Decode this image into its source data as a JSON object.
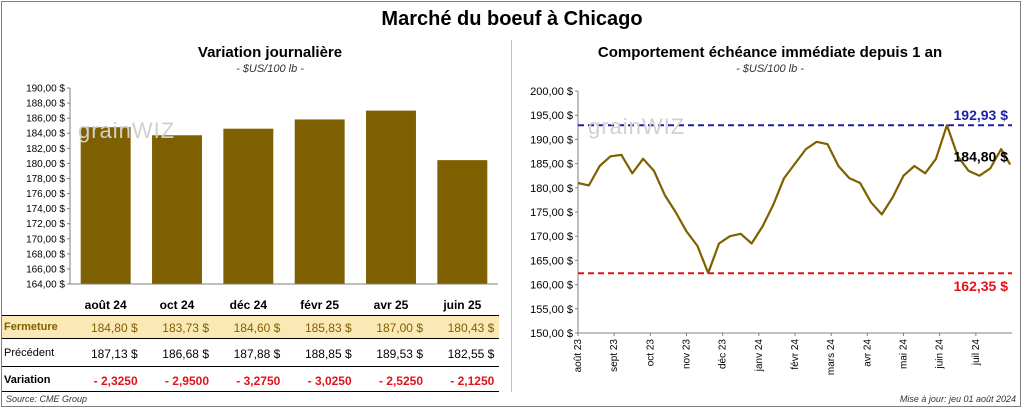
{
  "title": "Marché du boeuf à Chicago",
  "left_panel": {
    "title": "Variation journalière",
    "unit": "- $US/100 lb -",
    "watermark": "grainWIZ"
  },
  "right_panel": {
    "title": "Comportement échéance immédiate depuis 1 an",
    "unit": "- $US/100 lb -",
    "watermark": "grainWIZ"
  },
  "table": {
    "row_labels": {
      "fermeture": "Fermeture",
      "precedent": "Précédent",
      "variation": "Variation"
    },
    "fermeture": [
      "184,80 $",
      "183,73 $",
      "184,60 $",
      "185,83 $",
      "187,00 $",
      "180,43 $"
    ],
    "precedent": [
      "187,13 $",
      "186,68 $",
      "187,88 $",
      "188,85 $",
      "189,53 $",
      "182,55 $"
    ],
    "variation": [
      "- 2,3250",
      "- 2,9500",
      "- 3,2750",
      "- 3,0250",
      "- 2,5250",
      "- 2,1250"
    ]
  },
  "footer": {
    "source": "Source: CME Group",
    "update": "Mise à jour: jeu 01 août 2024"
  },
  "colors": {
    "bar": "#7f6000",
    "line": "#7f6000",
    "high": "#1f1fa8",
    "low": "#e0131a",
    "fermeture_bg": "#fbe9b5",
    "negative": "#e0131a"
  },
  "chart_data": [
    {
      "type": "bar",
      "title": "Variation journalière",
      "categories": [
        "août 24",
        "oct 24",
        "déc 24",
        "févr 25",
        "avr 25",
        "juin 25"
      ],
      "values": [
        184.8,
        183.73,
        184.6,
        185.83,
        187.0,
        180.43
      ],
      "ylim": [
        164,
        190
      ],
      "yticks": [
        "164,00 $",
        "166,00 $",
        "168,00 $",
        "170,00 $",
        "172,00 $",
        "174,00 $",
        "176,00 $",
        "178,00 $",
        "180,00 $",
        "182,00 $",
        "184,00 $",
        "186,00 $",
        "188,00 $",
        "190,00 $"
      ],
      "grid": false
    },
    {
      "type": "line",
      "title": "Comportement échéance immédiate depuis 1 an",
      "ylim": [
        150,
        200
      ],
      "yticks": [
        "150,00 $",
        "155,00 $",
        "160,00 $",
        "165,00 $",
        "170,00 $",
        "175,00 $",
        "180,00 $",
        "185,00 $",
        "190,00 $",
        "195,00 $",
        "200,00 $"
      ],
      "xticks": [
        "août 23",
        "sept 23",
        "oct 23",
        "nov 23",
        "déc 23",
        "janv 24",
        "févr 24",
        "mars 24",
        "avr 24",
        "mai 24",
        "juin 24",
        "juil 24"
      ],
      "x": [
        0,
        0.3,
        0.6,
        0.9,
        1.2,
        1.5,
        1.8,
        2.1,
        2.4,
        2.7,
        3.0,
        3.3,
        3.6,
        3.9,
        4.2,
        4.5,
        4.8,
        5.1,
        5.4,
        5.7,
        6.0,
        6.3,
        6.6,
        6.9,
        7.2,
        7.5,
        7.8,
        8.1,
        8.4,
        8.7,
        9.0,
        9.3,
        9.6,
        9.9,
        10.2,
        10.5,
        10.8,
        11.1,
        11.4,
        11.7,
        11.95
      ],
      "values": [
        181.0,
        180.5,
        184.5,
        186.5,
        186.8,
        183.0,
        186.0,
        183.5,
        178.5,
        175.0,
        171.0,
        168.0,
        162.4,
        168.5,
        170.0,
        170.5,
        168.5,
        172.0,
        176.5,
        182.0,
        185.0,
        188.0,
        189.5,
        189.0,
        184.5,
        182.0,
        181.0,
        177.0,
        174.5,
        178.0,
        182.5,
        184.5,
        183.0,
        186.0,
        192.93,
        186.5,
        183.5,
        182.5,
        184.0,
        188.0,
        184.8
      ],
      "series": [
        {
          "name": "Échéance immédiate"
        }
      ],
      "annotations": {
        "high": {
          "value": 192.93,
          "label": "192,93 $"
        },
        "low": {
          "value": 162.35,
          "label": "162,35 $"
        },
        "last": {
          "value": 184.8,
          "label": "184,80 $"
        }
      }
    }
  ]
}
